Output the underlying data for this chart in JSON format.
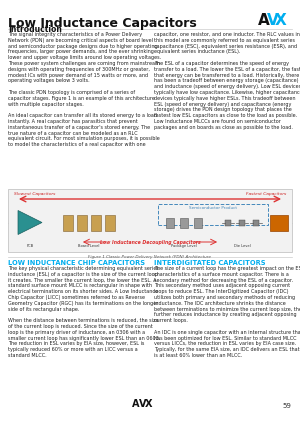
{
  "title": "Low Inductance Capacitors",
  "subtitle": "Introduction",
  "avx_logo_color": "#00AEEF",
  "page_number": "59",
  "background_color": "#ffffff",
  "header_line_color": "#cccccc",
  "divider_line_color": "#cccccc",
  "section1_title": "LOW INDUCTANCE CHIP CAPACITORS",
  "section2_title": "INTERDIGITATED CAPACITORS",
  "section1_color": "#00AEEF",
  "section2_color": "#00AEEF",
  "intro_text_left": "The signal integrity characteristics of a Power Delivery\nNetwork (PDN) are becoming critical aspects of board level\nand semiconductor package designs due to higher operating\nfrequencies, larger power demands, and the ever shrinking\nlower and upper voltage limits around low operating voltages.\nThese power system challenges are coming from mainstream\ndesigns with operating frequencies of 300MHz or greater,\nmodest ICs with power demand of 15 watts or more, and\noperating voltages below 3 volts.\n \nThe classic PDN topology is comprised of a series of\ncapacitor stages. Figure 1 is an example of this architecture\nwith multiple capacitor stages.\n \nAn ideal capacitor can transfer all its stored energy to a load\ninstantly. A real capacitor has parasitics that prevent\ninstantaneous transfer of a capacitor's stored energy. The\ntrue nature of a capacitor can be modeled as an RLC\nequivalent circuit. For most simulation purposes, it is possible\nto model the characteristics of a real capacitor with one",
  "intro_text_right": "capacitor, one resistor, and one inductor. The RLC values in\nthis model are commonly referred to as equivalent series\ncapacitance (ESC), equivalent series resistance (ESR), and\nequivalent series inductance (ESL).\n \nThe ESL of a capacitor determines the speed of energy\ntransfer to a load. The lower the ESL of a capacitor, the faster\nthat energy can be transferred to a load. Historically, there\nhas been a tradeoff between energy storage (capacitance)\nand inductance (speed of energy delivery). Low ESL devices\ntypically have low capacitance. Likewise, higher capacitance\ndevices typically have higher ESLs. This tradeoff between\nESL (speed of energy delivery) and capacitance (energy\nstorage) drives the PDN design topology that places the\nfastest low ESL capacitors as close to the load as possible.\nLow Inductance MLCCs are found on semiconductor\npackages and on boards as close as possible to the load.",
  "section1_text": "The key physical characteristic determining equivalent series\ninductance (ESL) of a capacitor is the size of the current loop\nit creates. The smaller the current loop, the lower the ESL. A\nstandard surface mount MLCC is rectangular in shape with\nelectrical terminations on its shorter sides. A Low Inductance\nChip Capacitor (LICC) sometimes referred to as Reverse\nGeometry Capacitor (RGC) has its terminations on the longer\nside of its rectangular shape.\n \nWhen the distance between terminations is reduced, the size\nof the current loop is reduced. Since the size of the current\nloop is the primary driver of inductance, an 0306 with a\nsmaller current loop has significantly lower ESL than an 0603.\nThe reduction in ESL varies by EIA size, however, ESL is\ntypically reduced 60% or more with an LICC versus a\nstandard MLCC.",
  "section2_text": "The size of a current loop has the greatest impact on the ESL\ncharacteristics of a surface mount capacitor. There is a\nsecondary method for decreasing the ESL of a capacitor.\nThis secondary method uses adjacent opposing current\nloops to reduce ESL. The InterDigitized Capacitor (IDC)\nutilizes both primary and secondary methods of reducing\ninductance. The IDC architecture shrinks the distance\nbetween terminations to minimize the current loop size, then\nfurther reduces inductance by creating adjacent opposing\ncurrent loops.\n \nAn IDC is one single capacitor with an internal structure that\nhas been optimized for low ESL. Similar to standard MLCC\nversus LICCs, the reduction in ESL varies by EIA case size.\nTypically, for the same EIA size, an IDC delivers an ESL that\nis at least 60% lower than an MLCC.",
  "figure_caption": "Figure 1 Classic Power Delivery Network (PDN) Architecture",
  "figure_label": "Low Inductance Decoupling Capacitors",
  "slowest_label": "Slowest Capacitors",
  "fastest_label": "Fastest Capacitors",
  "semiconductor_label": "Semiconductor Product",
  "fig_bg_color": "#f0f0f0",
  "arrow_color": "#dd3333",
  "bottom_arrow_color": "#dd3333",
  "semiconductor_box_color": "#4488bb",
  "fig_sublabels": [
    "PCB",
    "Board Level",
    "Package Level",
    "Die Level"
  ]
}
